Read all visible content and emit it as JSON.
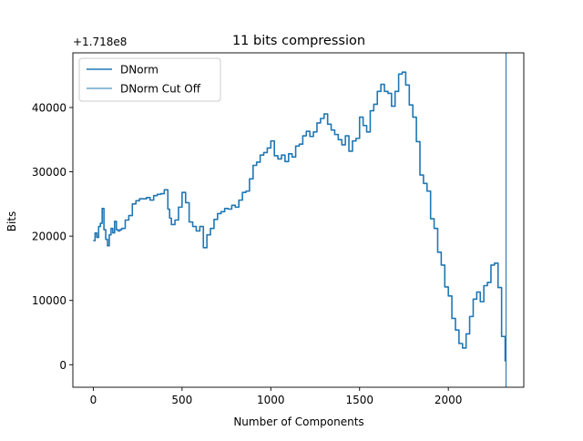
{
  "chart_data": {
    "type": "line",
    "title": "11 bits compression",
    "xlabel": "Number of Components",
    "ylabel": "Bits",
    "offset_text": "+1.718e8",
    "xlim": [
      -115,
      2425
    ],
    "ylim": [
      -3500,
      48500
    ],
    "x_ticks": [
      0,
      500,
      1000,
      1500,
      2000
    ],
    "y_ticks": [
      0,
      10000,
      20000,
      30000,
      40000
    ],
    "legend_position": "upper left",
    "grid": false,
    "series": [
      {
        "name": "DNorm",
        "color": "#1f77b4",
        "x": [
          0,
          10,
          20,
          30,
          40,
          50,
          60,
          70,
          80,
          90,
          100,
          110,
          120,
          130,
          140,
          150,
          160,
          180,
          200,
          220,
          240,
          260,
          280,
          300,
          320,
          340,
          360,
          380,
          400,
          420,
          430,
          440,
          460,
          480,
          500,
          520,
          540,
          560,
          580,
          600,
          620,
          640,
          660,
          680,
          700,
          720,
          740,
          760,
          780,
          800,
          820,
          840,
          860,
          880,
          900,
          920,
          940,
          960,
          980,
          1000,
          1020,
          1040,
          1060,
          1080,
          1100,
          1120,
          1140,
          1160,
          1180,
          1200,
          1220,
          1240,
          1260,
          1280,
          1300,
          1320,
          1340,
          1360,
          1380,
          1400,
          1420,
          1440,
          1460,
          1480,
          1500,
          1520,
          1540,
          1560,
          1580,
          1600,
          1620,
          1640,
          1660,
          1680,
          1700,
          1720,
          1740,
          1760,
          1780,
          1800,
          1820,
          1840,
          1860,
          1880,
          1900,
          1920,
          1940,
          1960,
          1980,
          2000,
          2020,
          2040,
          2060,
          2080,
          2100,
          2120,
          2140,
          2160,
          2180,
          2200,
          2220,
          2240,
          2260,
          2280,
          2300,
          2320
        ],
        "y": [
          19300,
          20500,
          19800,
          21500,
          22000,
          24300,
          21000,
          19500,
          18500,
          20200,
          21200,
          20500,
          22300,
          21000,
          20800,
          21000,
          21200,
          22500,
          23200,
          25000,
          25500,
          25800,
          25800,
          26000,
          25600,
          26300,
          26500,
          26600,
          27200,
          24200,
          22800,
          21800,
          22500,
          24500,
          26800,
          25200,
          22200,
          21500,
          20800,
          21500,
          18200,
          20200,
          21200,
          22600,
          23500,
          23800,
          24300,
          24200,
          24800,
          24500,
          25600,
          26800,
          27000,
          28900,
          31000,
          31500,
          32600,
          33000,
          33700,
          34800,
          32500,
          32000,
          32600,
          31600,
          32800,
          32300,
          34000,
          34300,
          35600,
          36300,
          35500,
          36200,
          37600,
          38300,
          39000,
          37400,
          36500,
          35800,
          35000,
          34200,
          35600,
          33200,
          34800,
          35200,
          38500,
          37200,
          36200,
          39500,
          40500,
          42500,
          43600,
          42500,
          42200,
          40200,
          42500,
          45200,
          45500,
          43500,
          40400,
          38500,
          34700,
          29500,
          28200,
          27000,
          22700,
          21200,
          17500,
          15500,
          12100,
          10700,
          7200,
          5400,
          3300,
          2600,
          4800,
          7500,
          10200,
          11300,
          9800,
          12300,
          12800,
          15500,
          15800,
          12000,
          4400,
          500
        ]
      },
      {
        "name": "DNorm Cut Off",
        "color": "#1f77b4",
        "type": "vline",
        "x": 2325
      }
    ]
  }
}
